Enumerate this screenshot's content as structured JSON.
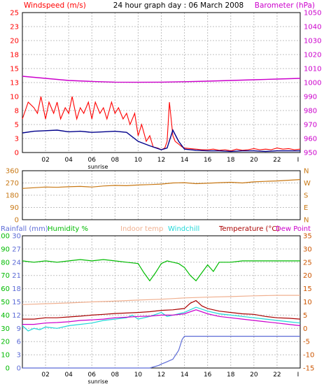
{
  "title": "24 hour graph day : 06 March 2008",
  "hour_labels": [
    "02",
    "04",
    "06",
    "08",
    "10",
    "12",
    "14",
    "16",
    "18",
    "20",
    "22"
  ],
  "end_tick_label": "I",
  "sunrise_label": "sunrise",
  "colors": {
    "windspeed": "#ff0000",
    "windspeed_avg": "#00008b",
    "barometer": "#cc00cc",
    "wind_direction": "#c87814",
    "rainfall": "#5c6bd6",
    "humidity": "#00bb00",
    "indoor_temp": "#f0b090",
    "windchill": "#20d8d8",
    "temperature": "#aa0000",
    "dew_point": "#cc00cc",
    "grid": "#c0c0c0",
    "frame": "#000000"
  },
  "chart_data": [
    {
      "type": "line",
      "legend": [
        "Windspeed (m/s)",
        "Barometer (hPa)"
      ],
      "y_left": {
        "range": [
          0,
          25
        ],
        "ticks": [
          "0",
          "3",
          "5",
          "8",
          "10",
          "13",
          "15",
          "18",
          "20",
          "23",
          "25"
        ]
      },
      "y_right": {
        "range": [
          950,
          1050
        ],
        "ticks": [
          "950",
          "960",
          "970",
          "980",
          "990",
          "1000",
          "1010",
          "1020",
          "1030",
          "1040",
          "1050"
        ]
      },
      "x_range_hours": [
        0,
        24
      ],
      "series": [
        {
          "key": "windspeed",
          "axis": "left",
          "x": [
            0,
            0.5,
            1,
            1.3,
            1.6,
            2,
            2.3,
            2.7,
            3,
            3.3,
            3.7,
            4,
            4.3,
            4.7,
            5,
            5.3,
            5.7,
            6,
            6.3,
            6.7,
            7,
            7.3,
            7.7,
            8,
            8.3,
            8.7,
            9,
            9.3,
            9.7,
            10,
            10.3,
            10.7,
            11,
            11.3,
            11.7,
            12,
            12.3,
            12.5,
            12.7,
            12.9,
            13,
            13.2,
            13.5,
            13.8,
            14,
            14.5,
            15,
            15.5,
            16,
            16.5,
            17,
            17.5,
            18,
            18.5,
            19,
            19.5,
            20,
            20.5,
            21,
            21.5,
            22,
            22.5,
            23,
            23.5,
            24
          ],
          "y": [
            6,
            9,
            8,
            7,
            10,
            6,
            9,
            7,
            9,
            6,
            8,
            7,
            10,
            6,
            8,
            7,
            9,
            6,
            9,
            7,
            8,
            6,
            9,
            7,
            8,
            6,
            7,
            5,
            7,
            3,
            5,
            2,
            3,
            1,
            0.8,
            0.5,
            0.8,
            2,
            9,
            5,
            3,
            2,
            1.5,
            1,
            0.8,
            0.7,
            0.6,
            0.5,
            0.5,
            0.6,
            0.4,
            0.5,
            0.3,
            0.6,
            0.4,
            0.5,
            0.7,
            0.5,
            0.6,
            0.5,
            0.8,
            0.6,
            0.7,
            0.5,
            0.6
          ]
        },
        {
          "key": "windspeed_avg",
          "axis": "left",
          "x": [
            0,
            1,
            2,
            3,
            4,
            5,
            6,
            7,
            8,
            9,
            10,
            11,
            12,
            12.5,
            13,
            13.5,
            14,
            15,
            16,
            17,
            18,
            19,
            20,
            21,
            22,
            23,
            24
          ],
          "y": [
            3.5,
            3.8,
            3.9,
            4,
            3.7,
            3.8,
            3.6,
            3.7,
            3.8,
            3.6,
            2,
            1.2,
            0.5,
            0.8,
            4,
            2,
            0.6,
            0.4,
            0.3,
            0.3,
            0.2,
            0.3,
            0.3,
            0.2,
            0.3,
            0.3,
            0.3
          ]
        },
        {
          "key": "barometer",
          "axis": "right",
          "x": [
            0,
            2,
            4,
            6,
            8,
            10,
            12,
            14,
            16,
            18,
            20,
            22,
            24
          ],
          "y": [
            1004.5,
            1003,
            1001.5,
            1000.8,
            1000.3,
            1000.2,
            1000.3,
            1000.6,
            1001,
            1001.5,
            1002,
            1002.5,
            1003
          ]
        }
      ]
    },
    {
      "type": "line",
      "y_left": {
        "range": [
          0,
          360
        ],
        "ticks": [
          "0",
          "90",
          "180",
          "270",
          "360"
        ]
      },
      "y_right": {
        "ticks": [
          "N",
          "E",
          "S",
          "W",
          "N"
        ]
      },
      "x_range_hours": [
        0,
        24
      ],
      "series": [
        {
          "key": "wind_direction",
          "x": [
            0,
            1,
            2,
            3,
            4,
            5,
            6,
            7,
            8,
            9,
            10,
            11,
            12,
            13,
            14,
            15,
            16,
            17,
            18,
            19,
            20,
            21,
            22,
            23,
            24
          ],
          "y": [
            230,
            235,
            240,
            238,
            242,
            245,
            240,
            248,
            252,
            250,
            255,
            258,
            262,
            270,
            272,
            265,
            268,
            272,
            275,
            270,
            278,
            282,
            285,
            290,
            295
          ]
        }
      ]
    },
    {
      "type": "line",
      "legend": [
        "Rainfall (mm)",
        "Humidity %",
        "Indoor temp",
        "Windchill",
        "Temperature (°C)",
        "Dew Point"
      ],
      "y_rainfall": {
        "range": [
          0,
          30
        ],
        "ticks": [
          "0",
          "3",
          "6",
          "9",
          "12",
          "15",
          "18",
          "21",
          "24",
          "27",
          "30"
        ]
      },
      "y_humidity": {
        "range": [
          0,
          100
        ],
        "ticks": [
          "0",
          "10",
          "20",
          "30",
          "40",
          "50",
          "60",
          "70",
          "80",
          "90",
          "100"
        ]
      },
      "y_temperature": {
        "range": [
          -15,
          35
        ],
        "ticks": [
          "-15",
          "-10",
          "-5",
          "0",
          "5",
          "10",
          "15",
          "20",
          "25",
          "30",
          "35"
        ]
      },
      "x_range_hours": [
        0,
        24
      ],
      "series": [
        {
          "key": "humidity",
          "axis": "humidity",
          "x": [
            0,
            1,
            2,
            3,
            4,
            5,
            6,
            7,
            8,
            9,
            10,
            10.5,
            11,
            11.5,
            12,
            12.5,
            13,
            13.5,
            14,
            14.5,
            15,
            15.5,
            16,
            16.5,
            17,
            18,
            19,
            20,
            21,
            22,
            23,
            24
          ],
          "y": [
            81,
            80,
            81,
            80,
            81,
            82,
            81,
            82,
            81,
            80,
            79,
            72,
            66,
            72,
            79,
            81,
            80,
            79,
            76,
            70,
            66,
            72,
            78,
            73,
            80,
            80,
            81,
            81,
            81,
            81,
            81,
            81
          ]
        },
        {
          "key": "indoor_temp",
          "axis": "temperature",
          "x": [
            0,
            2,
            4,
            6,
            8,
            10,
            12,
            14,
            16,
            18,
            20,
            22,
            24
          ],
          "y": [
            9,
            9.3,
            9.6,
            10,
            10.3,
            10.7,
            11,
            11.5,
            11.8,
            12,
            12.3,
            12.5,
            12.5
          ]
        },
        {
          "key": "temperature",
          "axis": "temperature",
          "x": [
            0,
            1,
            2,
            3,
            4,
            5,
            6,
            7,
            8,
            9,
            10,
            11,
            12,
            13,
            14,
            14.5,
            15,
            15.5,
            16,
            17,
            18,
            19,
            20,
            21,
            22,
            23,
            24
          ],
          "y": [
            3.5,
            3.5,
            4,
            4,
            4.3,
            4.6,
            5,
            5.3,
            5.6,
            5.8,
            6,
            6.3,
            6.8,
            7,
            7.5,
            9.5,
            10.5,
            8.5,
            7.5,
            6.5,
            6,
            5.5,
            5.3,
            4.5,
            4,
            3.8,
            3.5
          ]
        },
        {
          "key": "windchill",
          "axis": "temperature",
          "x": [
            0,
            0.5,
            1,
            1.5,
            2,
            3,
            4,
            5,
            6,
            7,
            8,
            9,
            9.5,
            10,
            11,
            12,
            12.5,
            13,
            14,
            15,
            16,
            17,
            18,
            19,
            20,
            21,
            22,
            23,
            24
          ],
          "y": [
            1,
            -1,
            0,
            -0.5,
            0.5,
            0,
            1,
            1.5,
            2,
            3,
            3.5,
            4,
            5,
            3.5,
            4.5,
            6,
            4.5,
            5,
            6,
            8,
            6.5,
            5.5,
            5,
            4.5,
            4,
            3.5,
            3,
            2.5,
            2
          ]
        },
        {
          "key": "dew_point",
          "axis": "temperature",
          "x": [
            0,
            1,
            2,
            3,
            4,
            5,
            6,
            7,
            8,
            9,
            10,
            11,
            12,
            13,
            14,
            15,
            16,
            17,
            18,
            19,
            20,
            21,
            22,
            23,
            24
          ],
          "y": [
            1.5,
            1.5,
            2,
            2.2,
            2.5,
            3,
            3.2,
            3.5,
            4,
            4.2,
            4.5,
            4.6,
            5,
            5,
            5.5,
            7,
            5.5,
            4.5,
            4,
            3.5,
            3,
            2.5,
            2,
            1.5,
            1
          ]
        },
        {
          "key": "rainfall",
          "axis": "rainfall",
          "x": [
            0,
            11,
            11.8,
            12,
            12.3,
            13,
            13.5,
            13.8,
            14,
            24
          ],
          "y": [
            0,
            0,
            0.6,
            0.9,
            1.2,
            2,
            4,
            6.5,
            7.2,
            7.2
          ]
        }
      ]
    }
  ]
}
